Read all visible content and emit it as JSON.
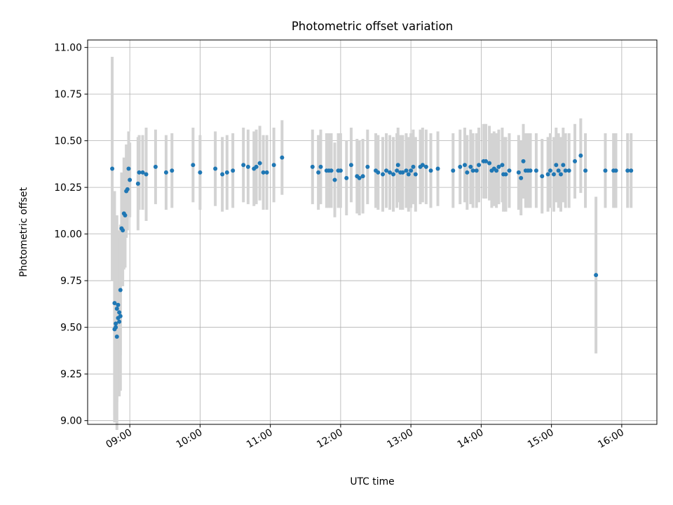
{
  "chart_data": {
    "type": "scatter",
    "title": "Photometric offset variation",
    "xlabel": "UTC time",
    "ylabel": "Photometric offset",
    "xlim": [
      "08:24",
      "16:30"
    ],
    "ylim": [
      8.98,
      11.04
    ],
    "yticks": [
      "9.00",
      "9.25",
      "9.50",
      "9.75",
      "10.00",
      "10.25",
      "10.50",
      "10.75",
      "11.00"
    ],
    "xticks": [
      "09:00",
      "10:00",
      "11:00",
      "12:00",
      "13:00",
      "14:00",
      "15:00",
      "16:00"
    ],
    "grid": true,
    "marker_color": "#1f77b4",
    "errorbar_color": "#d3d3d3",
    "series": [
      {
        "x": [
          "08:45",
          "08:47",
          "08:47",
          "08:48",
          "08:48",
          "08:49",
          "08:49",
          "08:50",
          "08:50",
          "08:51",
          "08:51",
          "08:52",
          "08:52",
          "08:53",
          "08:54",
          "08:55",
          "08:56",
          "08:57",
          "08:58",
          "08:59",
          "09:00",
          "09:07",
          "09:08",
          "09:11",
          "09:14",
          "09:22",
          "09:31",
          "09:36",
          "09:54",
          "10:00",
          "10:13",
          "10:19",
          "10:23",
          "10:28",
          "10:37",
          "10:41",
          "10:46",
          "10:48",
          "10:51",
          "10:54",
          "10:57",
          "11:03",
          "11:10",
          "11:36",
          "11:41",
          "11:43",
          "11:48",
          "11:50",
          "11:52",
          "11:55",
          "11:58",
          "12:00",
          "12:05",
          "12:09",
          "12:14",
          "12:16",
          "12:19",
          "12:23",
          "12:30",
          "12:32",
          "12:36",
          "12:39",
          "12:42",
          "12:45",
          "12:48",
          "12:49",
          "12:51",
          "12:53",
          "12:56",
          "12:58",
          "13:00",
          "13:02",
          "13:04",
          "13:08",
          "13:10",
          "13:13",
          "13:17",
          "13:23",
          "13:36",
          "13:42",
          "13:46",
          "13:48",
          "13:51",
          "13:53",
          "13:56",
          "13:58",
          "14:02",
          "14:04",
          "14:07",
          "14:09",
          "14:11",
          "14:13",
          "14:15",
          "14:18",
          "14:19",
          "14:21",
          "14:24",
          "14:32",
          "14:34",
          "14:36",
          "14:38",
          "14:40",
          "14:42",
          "14:47",
          "14:52",
          "14:57",
          "14:59",
          "15:02",
          "15:04",
          "15:06",
          "15:08",
          "15:10",
          "15:12",
          "15:15",
          "15:20",
          "15:25",
          "15:29",
          "15:38",
          "15:46",
          "15:53",
          "15:55",
          "16:05",
          "16:08"
        ],
        "y": [
          10.35,
          9.63,
          9.49,
          9.5,
          9.52,
          9.45,
          9.6,
          9.62,
          9.55,
          9.58,
          9.53,
          9.56,
          9.7,
          10.03,
          10.02,
          10.11,
          10.1,
          10.23,
          10.24,
          10.35,
          10.29,
          10.27,
          10.33,
          10.33,
          10.32,
          10.36,
          10.33,
          10.34,
          10.37,
          10.33,
          10.35,
          10.32,
          10.33,
          10.34,
          10.37,
          10.36,
          10.35,
          10.36,
          10.38,
          10.33,
          10.33,
          10.37,
          10.41,
          10.36,
          10.33,
          10.36,
          10.34,
          10.34,
          10.34,
          10.29,
          10.34,
          10.34,
          10.3,
          10.37,
          10.31,
          10.3,
          10.31,
          10.36,
          10.34,
          10.33,
          10.32,
          10.34,
          10.33,
          10.32,
          10.34,
          10.37,
          10.33,
          10.33,
          10.34,
          10.32,
          10.34,
          10.36,
          10.32,
          10.36,
          10.37,
          10.36,
          10.34,
          10.35,
          10.34,
          10.36,
          10.37,
          10.33,
          10.36,
          10.34,
          10.34,
          10.37,
          10.39,
          10.39,
          10.38,
          10.34,
          10.35,
          10.34,
          10.36,
          10.37,
          10.32,
          10.32,
          10.34,
          10.33,
          10.3,
          10.39,
          10.34,
          10.34,
          10.34,
          10.34,
          10.31,
          10.32,
          10.34,
          10.32,
          10.37,
          10.34,
          10.32,
          10.37,
          10.34,
          10.34,
          10.39,
          10.42,
          10.34,
          9.78,
          10.34,
          10.34,
          10.34,
          10.34,
          10.34
        ],
        "err": [
          0.6,
          0.6,
          0.5,
          0.5,
          0.5,
          0.5,
          0.5,
          0.4,
          0.4,
          0.4,
          0.4,
          0.4,
          0.35,
          0.3,
          0.3,
          0.3,
          0.28,
          0.25,
          0.22,
          0.2,
          0.2,
          0.25,
          0.2,
          0.2,
          0.25,
          0.2,
          0.2,
          0.2,
          0.2,
          0.2,
          0.2,
          0.2,
          0.2,
          0.2,
          0.2,
          0.2,
          0.2,
          0.2,
          0.2,
          0.2,
          0.2,
          0.2,
          0.2,
          0.2,
          0.2,
          0.2,
          0.2,
          0.2,
          0.2,
          0.2,
          0.2,
          0.2,
          0.2,
          0.2,
          0.2,
          0.2,
          0.2,
          0.2,
          0.2,
          0.2,
          0.2,
          0.2,
          0.2,
          0.2,
          0.2,
          0.2,
          0.2,
          0.2,
          0.2,
          0.2,
          0.2,
          0.2,
          0.2,
          0.2,
          0.2,
          0.2,
          0.2,
          0.2,
          0.2,
          0.2,
          0.2,
          0.2,
          0.2,
          0.2,
          0.2,
          0.2,
          0.2,
          0.2,
          0.2,
          0.2,
          0.2,
          0.2,
          0.2,
          0.2,
          0.2,
          0.2,
          0.2,
          0.2,
          0.2,
          0.2,
          0.2,
          0.2,
          0.2,
          0.2,
          0.2,
          0.2,
          0.2,
          0.2,
          0.2,
          0.2,
          0.2,
          0.2,
          0.2,
          0.2,
          0.2,
          0.2,
          0.2,
          0.42,
          0.2,
          0.2,
          0.2,
          0.2,
          0.2
        ]
      }
    ]
  }
}
